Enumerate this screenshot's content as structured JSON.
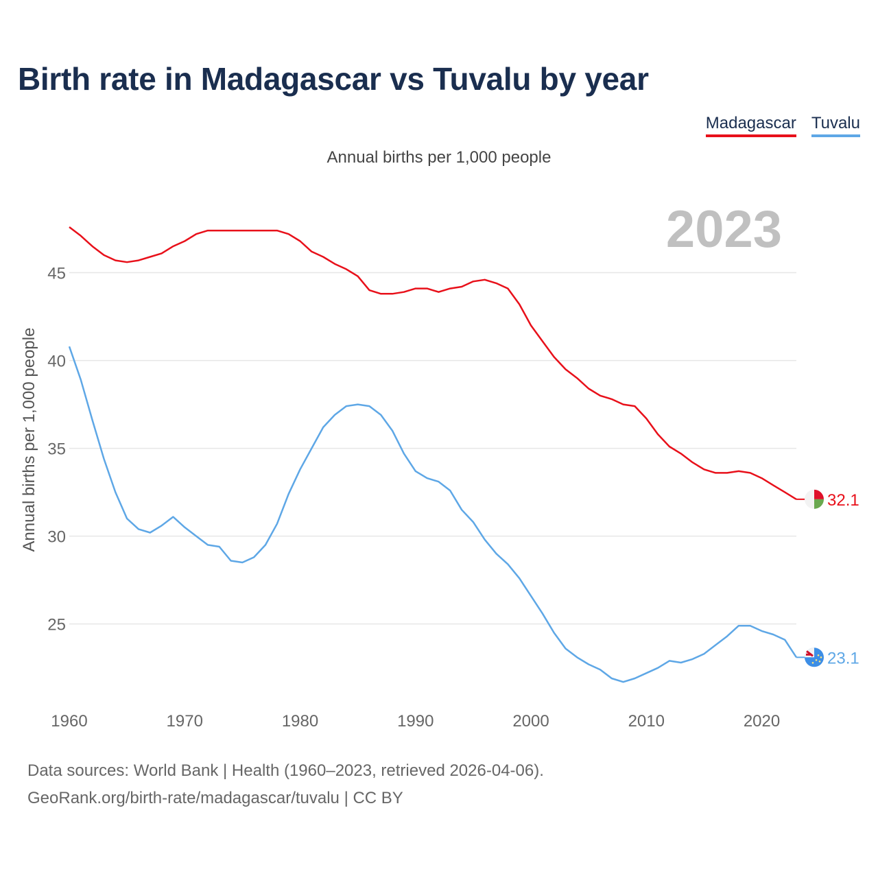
{
  "title": "Birth rate in Madagascar vs Tuvalu by year",
  "legend": {
    "madagascar": "Madagascar",
    "tuvalu": "Tuvalu"
  },
  "subtitle": "Annual births per 1,000 people",
  "source": {
    "line1": "Data sources: World Bank | Health (1960–2023, retrieved 2026-04-06).",
    "line2": "GeoRank.org/birth-rate/madagascar/tuvalu | CC BY"
  },
  "colors": {
    "madagascar": "#e8101a",
    "tuvalu": "#5ea7e6",
    "year_label": "#c0c0c0",
    "grid": "#e6e6e6"
  },
  "chart_data": {
    "type": "line",
    "title": "Birth rate in Madagascar vs Tuvalu by year",
    "ylabel": "Annual births per 1,000 people",
    "xlabel": "",
    "current_year": "2023",
    "xlim": [
      1960,
      2023
    ],
    "ylim": [
      20.3,
      49.2
    ],
    "x_ticks": [
      1960,
      1970,
      1980,
      1990,
      2000,
      2010,
      2020
    ],
    "y_ticks": [
      25,
      30,
      35,
      40,
      45
    ],
    "x": [
      1960,
      1961,
      1962,
      1963,
      1964,
      1965,
      1966,
      1967,
      1968,
      1969,
      1970,
      1971,
      1972,
      1973,
      1974,
      1975,
      1976,
      1977,
      1978,
      1979,
      1980,
      1981,
      1982,
      1983,
      1984,
      1985,
      1986,
      1987,
      1988,
      1989,
      1990,
      1991,
      1992,
      1993,
      1994,
      1995,
      1996,
      1997,
      1998,
      1999,
      2000,
      2001,
      2002,
      2003,
      2004,
      2005,
      2006,
      2007,
      2008,
      2009,
      2010,
      2011,
      2012,
      2013,
      2014,
      2015,
      2016,
      2017,
      2018,
      2019,
      2020,
      2021,
      2022,
      2023
    ],
    "series": [
      {
        "name": "Madagascar",
        "end_label": "32.1",
        "values": [
          47.6,
          47.1,
          46.5,
          46.0,
          45.7,
          45.6,
          45.7,
          45.9,
          46.1,
          46.5,
          46.8,
          47.2,
          47.4,
          47.4,
          47.4,
          47.4,
          47.4,
          47.4,
          47.4,
          47.2,
          46.8,
          46.2,
          45.9,
          45.5,
          45.2,
          44.8,
          44.0,
          43.8,
          43.8,
          43.9,
          44.1,
          44.1,
          43.9,
          44.1,
          44.2,
          44.5,
          44.6,
          44.4,
          44.1,
          43.2,
          42.0,
          41.1,
          40.2,
          39.5,
          39.0,
          38.4,
          38.0,
          37.8,
          37.5,
          37.4,
          36.7,
          35.8,
          35.1,
          34.7,
          34.2,
          33.8,
          33.6,
          33.6,
          33.7,
          33.6,
          33.3,
          32.9,
          32.5,
          32.1
        ]
      },
      {
        "name": "Tuvalu",
        "end_label": "23.1",
        "values": [
          40.8,
          38.9,
          36.6,
          34.4,
          32.5,
          31.0,
          30.4,
          30.2,
          30.6,
          31.1,
          30.5,
          30.0,
          29.5,
          29.4,
          28.6,
          28.5,
          28.8,
          29.5,
          30.7,
          32.4,
          33.8,
          35.0,
          36.2,
          36.9,
          37.4,
          37.5,
          37.4,
          36.9,
          36.0,
          34.7,
          33.7,
          33.3,
          33.1,
          32.6,
          31.5,
          30.8,
          29.8,
          29.0,
          28.4,
          27.6,
          26.6,
          25.6,
          24.5,
          23.6,
          23.1,
          22.7,
          22.4,
          21.9,
          21.7,
          21.9,
          22.2,
          22.5,
          22.9,
          22.8,
          23.0,
          23.3,
          23.8,
          24.3,
          24.9,
          24.9,
          24.6,
          24.4,
          24.1,
          23.1
        ]
      }
    ]
  }
}
